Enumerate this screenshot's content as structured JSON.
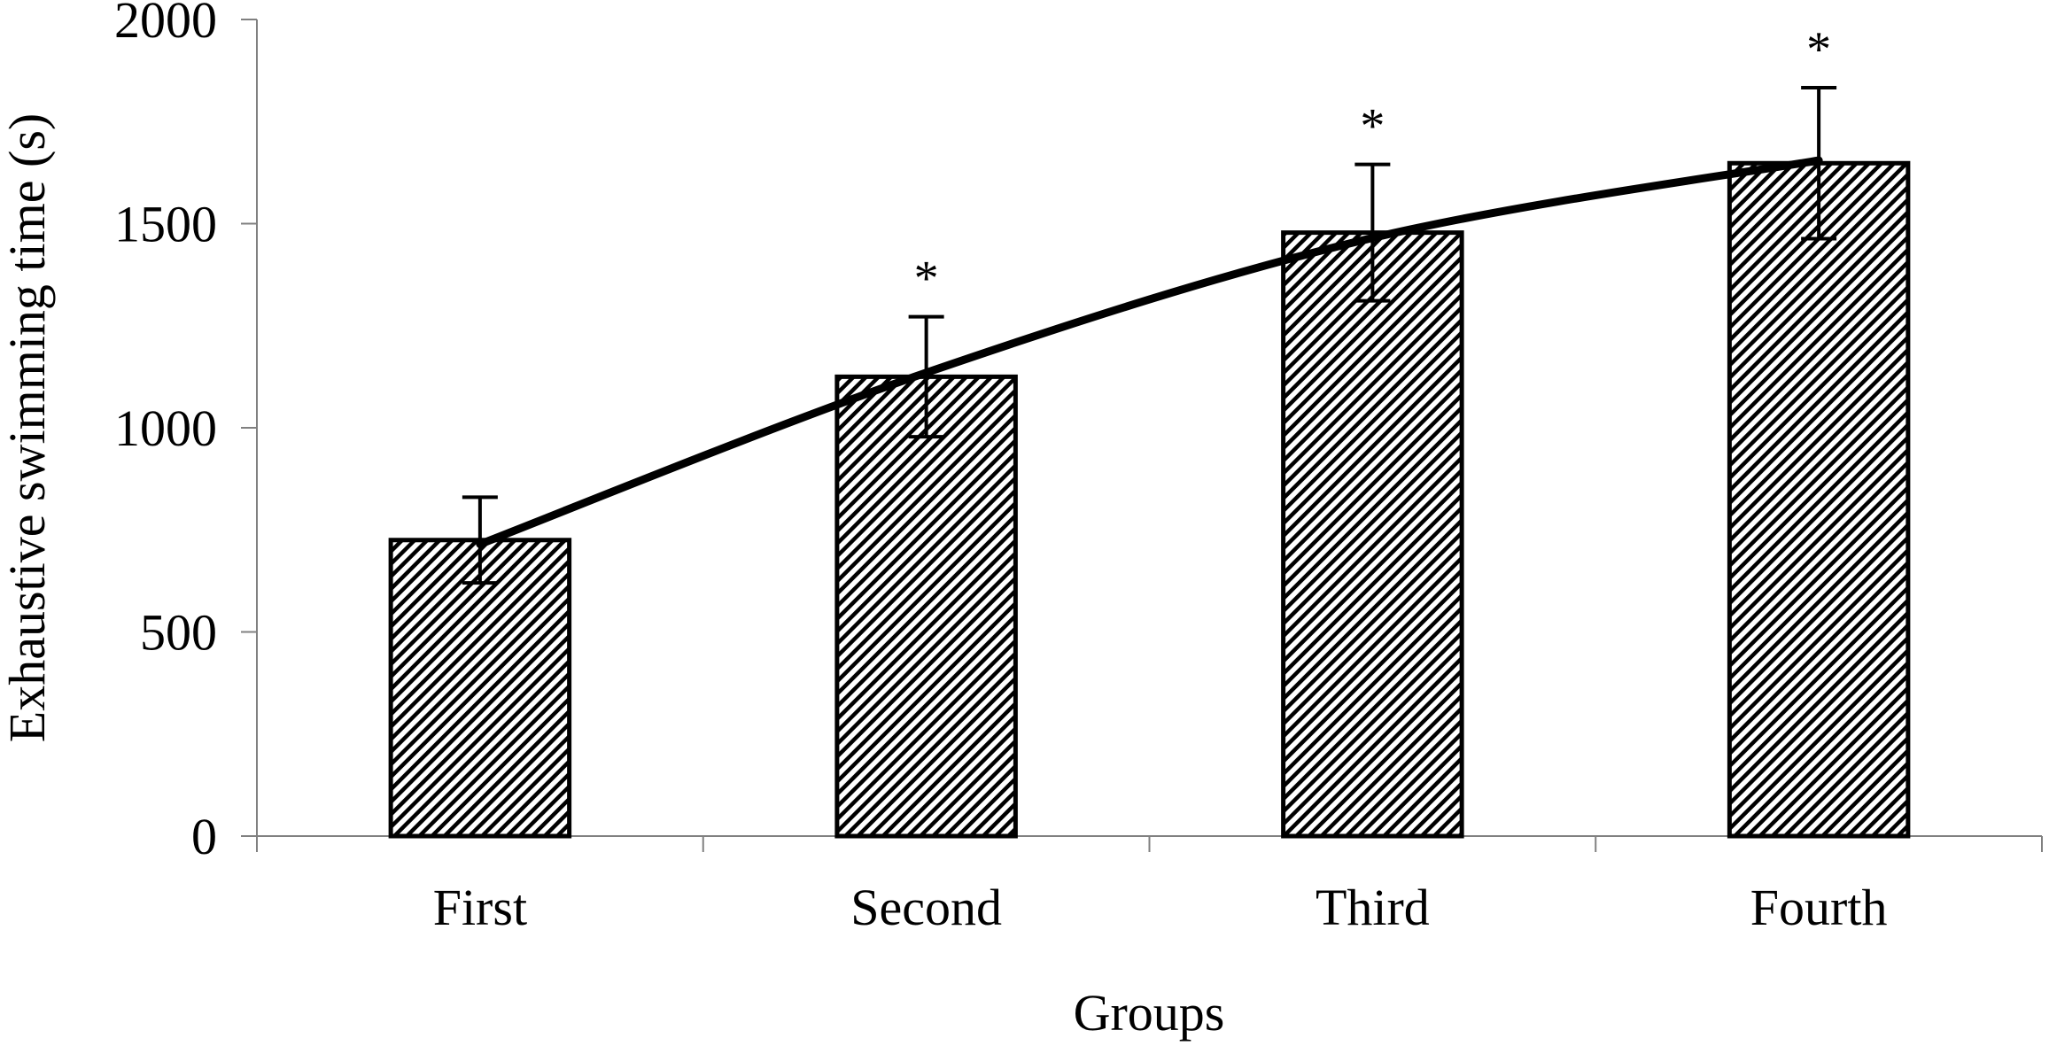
{
  "chart_data": {
    "type": "bar",
    "title": "",
    "xlabel": "Groups",
    "ylabel": "Exhaustive swimming time (s)",
    "ylim": [
      0,
      2000
    ],
    "yticks": [
      0,
      500,
      1000,
      1500,
      2000
    ],
    "ytick_labels": [
      "0",
      "500",
      "1000",
      "1500",
      "2000"
    ],
    "grid": false,
    "categories": [
      "First",
      "Second",
      "Third",
      "Fourth"
    ],
    "values": [
      725,
      1125,
      1478,
      1648
    ],
    "error": [
      105,
      147,
      167,
      185
    ],
    "significance": [
      "",
      "*",
      "*",
      "*"
    ],
    "trend_line": {
      "type": "smooth-curve",
      "values": [
        715,
        1135,
        1465,
        1655
      ]
    },
    "colors": {
      "bar_fill_pattern": "diagonal-hatch",
      "bar_edge": "#000000",
      "line": "#000000",
      "axis": "#808080"
    }
  }
}
